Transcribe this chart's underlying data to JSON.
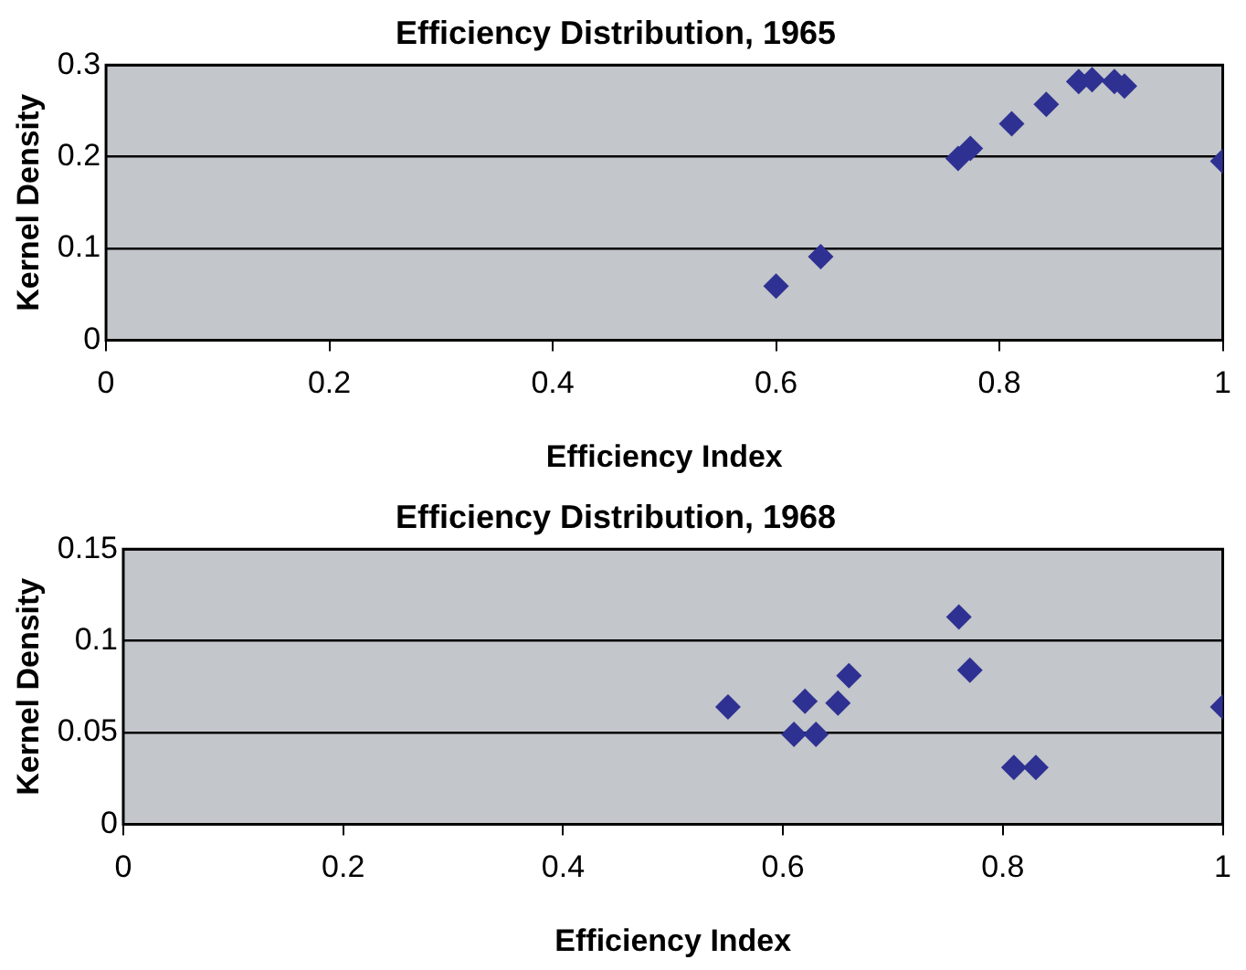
{
  "chart_data": [
    {
      "type": "scatter",
      "title": "Efficiency Distribution, 1965",
      "xlabel": "Efficiency Index",
      "ylabel": "Kernel Density",
      "series": [
        {
          "color": "#2e3192",
          "x": [
            0.6,
            0.64,
            0.763,
            0.774,
            0.811,
            0.842,
            0.871,
            0.883,
            0.903,
            0.912,
            1.0
          ],
          "values": [
            0.059,
            0.091,
            0.198,
            0.209,
            0.236,
            0.257,
            0.282,
            0.284,
            0.282,
            0.277,
            0.195
          ]
        }
      ],
      "xlim": [
        0,
        1
      ],
      "xticks": [
        0,
        0.2,
        0.4,
        0.6,
        0.8,
        1
      ],
      "ylim": [
        0,
        0.3
      ],
      "yticks": [
        0,
        0.1,
        0.2,
        0.3
      ],
      "grid": "y",
      "legend": false,
      "marker": "diamond"
    },
    {
      "type": "scatter",
      "title": "Efficiency Distribution, 1968",
      "xlabel": "Efficiency Index",
      "ylabel": "Kernel Density",
      "series": [
        {
          "color": "#2e3192",
          "x": [
            0.55,
            0.61,
            0.62,
            0.63,
            0.65,
            0.66,
            0.76,
            0.77,
            0.81,
            0.83,
            1.0
          ],
          "values": [
            0.064,
            0.049,
            0.067,
            0.049,
            0.066,
            0.081,
            0.113,
            0.084,
            0.031,
            0.031,
            0.064
          ]
        }
      ],
      "xlim": [
        0,
        1
      ],
      "xticks": [
        0,
        0.2,
        0.4,
        0.6,
        0.8,
        1
      ],
      "ylim": [
        0,
        0.15
      ],
      "yticks": [
        0,
        0.05,
        0.1,
        0.15
      ],
      "grid": "y",
      "legend": false,
      "marker": "diamond"
    }
  ]
}
